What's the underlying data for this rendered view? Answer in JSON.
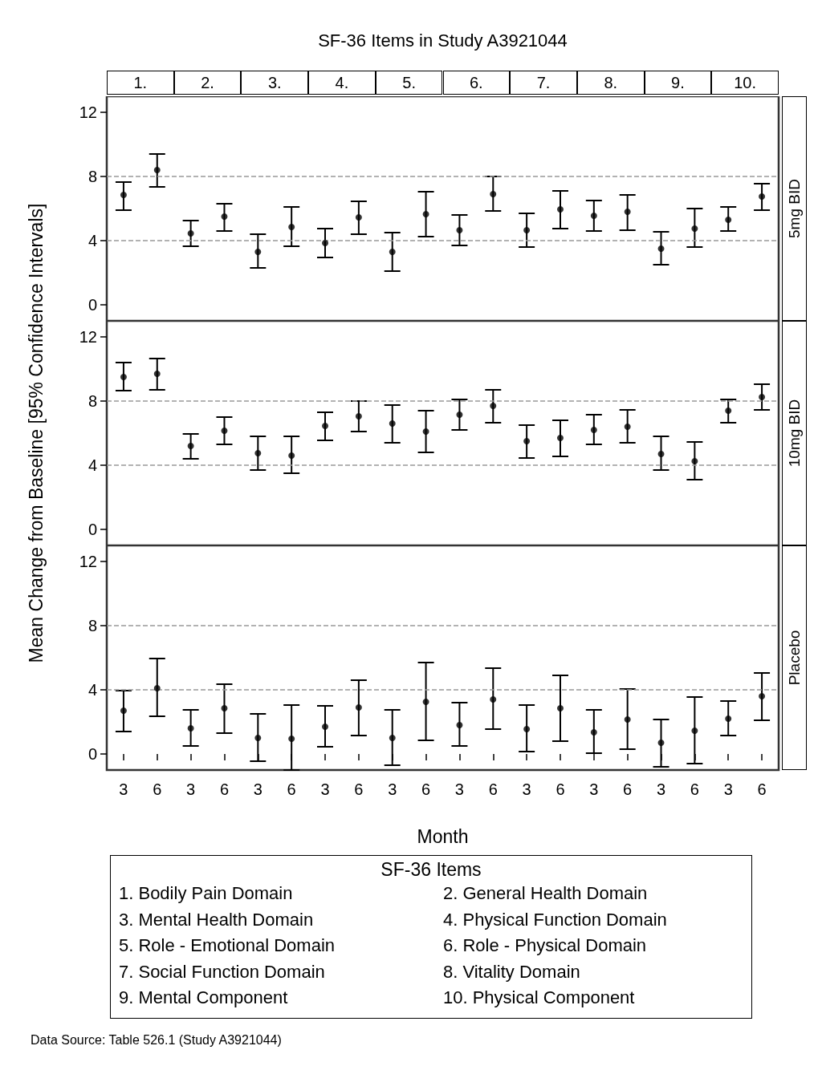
{
  "chart_data": [
    {
      "type": "scatter",
      "title": "SF-36 Items in Study A3921044",
      "y2label": "5mg BID",
      "annotations": [
        "1.",
        "2.",
        "3.",
        "4.",
        "5.",
        "6.",
        "7.",
        "8.",
        "9.",
        "10."
      ],
      "categories": [
        "3",
        "6",
        "3",
        "6",
        "3",
        "6",
        "3",
        "6",
        "3",
        "6",
        "3",
        "6",
        "3",
        "6",
        "3",
        "6",
        "3",
        "6",
        "3",
        "6"
      ],
      "values": [
        6.85,
        8.4,
        4.45,
        5.5,
        3.3,
        4.85,
        3.85,
        5.45,
        3.3,
        5.65,
        4.65,
        6.9,
        4.65,
        5.95,
        5.55,
        5.8,
        3.5,
        4.75,
        5.3,
        6.75
      ],
      "errors": [
        [
          5.9,
          7.65
        ],
        [
          7.35,
          9.4
        ],
        [
          3.65,
          5.25
        ],
        [
          4.6,
          6.3
        ],
        [
          2.3,
          4.4
        ],
        [
          3.65,
          6.1
        ],
        [
          2.95,
          4.75
        ],
        [
          4.4,
          6.45
        ],
        [
          2.1,
          4.5
        ],
        [
          4.25,
          7.05
        ],
        [
          3.7,
          5.6
        ],
        [
          5.85,
          8.0
        ],
        [
          3.6,
          5.7
        ],
        [
          4.75,
          7.1
        ],
        [
          4.6,
          6.5
        ],
        [
          4.65,
          6.85
        ],
        [
          2.5,
          4.55
        ],
        [
          3.6,
          6.0
        ],
        [
          4.6,
          6.1
        ],
        [
          5.9,
          7.55
        ]
      ],
      "color": "#000000",
      "marker": "circle",
      "ylim": [
        -1,
        13
      ],
      "yticks": [
        0,
        4,
        8,
        12
      ],
      "tick_labels": "y",
      "ref_lines": [
        {
          "axis": "y",
          "value": 4,
          "color": "#999999",
          "line_style": "dashed"
        },
        {
          "axis": "y",
          "value": 8,
          "color": "#999999",
          "line_style": "dashed"
        }
      ]
    },
    {
      "type": "scatter",
      "ylabel": "Mean Change from Baseline [95% Confidence Intervals]",
      "y2label": "10mg BID",
      "categories": [
        "3",
        "6",
        "3",
        "6",
        "3",
        "6",
        "3",
        "6",
        "3",
        "6",
        "3",
        "6",
        "3",
        "6",
        "3",
        "6",
        "3",
        "6",
        "3",
        "6"
      ],
      "values": [
        9.5,
        9.7,
        5.2,
        6.15,
        4.75,
        4.6,
        6.45,
        7.05,
        6.6,
        6.1,
        7.15,
        7.7,
        5.5,
        5.7,
        6.2,
        6.4,
        4.7,
        4.25,
        7.4,
        8.25
      ],
      "errors": [
        [
          8.65,
          10.4
        ],
        [
          8.7,
          10.65
        ],
        [
          4.4,
          5.95
        ],
        [
          5.3,
          7.0
        ],
        [
          3.7,
          5.8
        ],
        [
          3.5,
          5.8
        ],
        [
          5.55,
          7.3
        ],
        [
          6.1,
          8.0
        ],
        [
          5.4,
          7.75
        ],
        [
          4.8,
          7.4
        ],
        [
          6.2,
          8.1
        ],
        [
          6.65,
          8.7
        ],
        [
          4.45,
          6.5
        ],
        [
          4.55,
          6.8
        ],
        [
          5.3,
          7.15
        ],
        [
          5.4,
          7.45
        ],
        [
          3.7,
          5.8
        ],
        [
          3.1,
          5.45
        ],
        [
          6.65,
          8.1
        ],
        [
          7.45,
          9.05
        ]
      ],
      "color": "#000000",
      "marker": "circle",
      "ylim": [
        -1,
        13
      ],
      "yticks": [
        0,
        4,
        8,
        12
      ],
      "tick_labels": "y",
      "ref_lines": [
        {
          "axis": "y",
          "value": 4,
          "color": "#999999",
          "line_style": "dashed"
        },
        {
          "axis": "y",
          "value": 8,
          "color": "#999999",
          "line_style": "dashed"
        }
      ]
    },
    {
      "type": "scatter",
      "xlabel": "Month",
      "y2label": "Placebo",
      "legend_title": "SF-36 Items",
      "annotations": [
        "1. Bodily Pain Domain",
        "2. General Health Domain",
        "3. Mental Health Domain",
        "4. Physical Function Domain",
        "5. Role - Emotional Domain",
        "6. Role - Physical Domain",
        "7. Social Function Domain",
        "8. Vitality Domain",
        "9. Mental Component",
        "10. Physical Component",
        "Data Source: Table 526.1 (Study A3921044)"
      ],
      "categories": [
        "3",
        "6",
        "3",
        "6",
        "3",
        "6",
        "3",
        "6",
        "3",
        "6",
        "3",
        "6",
        "3",
        "6",
        "3",
        "6",
        "3",
        "6",
        "3",
        "6"
      ],
      "values": [
        2.7,
        4.1,
        1.6,
        2.85,
        1.0,
        0.95,
        1.7,
        2.9,
        1.0,
        3.25,
        1.8,
        3.4,
        1.55,
        2.85,
        1.35,
        2.15,
        0.7,
        1.45,
        2.2,
        3.6
      ],
      "errors": [
        [
          1.4,
          3.95
        ],
        [
          2.35,
          5.95
        ],
        [
          0.5,
          2.75
        ],
        [
          1.3,
          4.35
        ],
        [
          -0.45,
          2.5
        ],
        [
          -1,
          3.05
        ],
        [
          0.45,
          3.0
        ],
        [
          1.15,
          4.6
        ],
        [
          -0.7,
          2.75
        ],
        [
          0.85,
          5.7
        ],
        [
          0.5,
          3.2
        ],
        [
          1.55,
          5.35
        ],
        [
          0.15,
          3.05
        ],
        [
          0.8,
          4.9
        ],
        [
          0.05,
          2.75
        ],
        [
          0.3,
          4.05
        ],
        [
          -0.8,
          2.15
        ],
        [
          -0.6,
          3.55
        ],
        [
          1.15,
          3.3
        ],
        [
          2.1,
          5.05
        ]
      ],
      "color": "#000000",
      "marker": "circle",
      "ylim": [
        -1,
        13
      ],
      "yticks": [
        0,
        4,
        8,
        12
      ],
      "ref_lines": [
        {
          "axis": "y",
          "value": 4,
          "color": "#999999",
          "line_style": "dashed"
        },
        {
          "axis": "y",
          "value": 8,
          "color": "#999999",
          "line_style": "dashed"
        }
      ]
    }
  ]
}
